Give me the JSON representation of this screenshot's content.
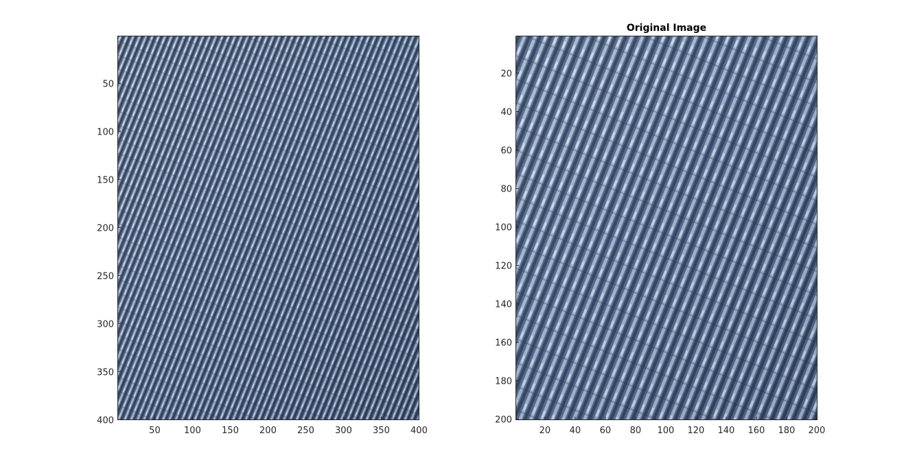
{
  "figure": {
    "background": "#ffffff"
  },
  "chart_data": [
    {
      "type": "image",
      "title": "",
      "xlabel": "",
      "ylabel": "",
      "xlim": [
        0.5,
        400.5
      ],
      "ylim": [
        400.5,
        0.5
      ],
      "y_direction": "reverse",
      "xticks": [
        50,
        100,
        150,
        200,
        250,
        300,
        350,
        400
      ],
      "yticks": [
        50,
        100,
        150,
        200,
        250,
        300,
        350,
        400
      ],
      "image_size": [
        400,
        400
      ],
      "content": "denim-texture",
      "colors": {
        "base": "#4d5f80",
        "dark": "#1f2c42",
        "light": "#b9cde0",
        "highlight": "#dde9f3"
      }
    },
    {
      "type": "image",
      "title": "Original Image",
      "xlabel": "",
      "ylabel": "",
      "xlim": [
        0.5,
        200.5
      ],
      "ylim": [
        200.5,
        0.5
      ],
      "y_direction": "reverse",
      "xticks": [
        20,
        40,
        60,
        80,
        100,
        120,
        140,
        160,
        180,
        200
      ],
      "yticks": [
        20,
        40,
        60,
        80,
        100,
        120,
        140,
        160,
        180,
        200
      ],
      "image_size": [
        200,
        200
      ],
      "content": "denim-texture",
      "colors": {
        "base": "#52668a",
        "dark": "#243149",
        "light": "#b5c8dc",
        "highlight": "#dce8f2"
      }
    }
  ]
}
